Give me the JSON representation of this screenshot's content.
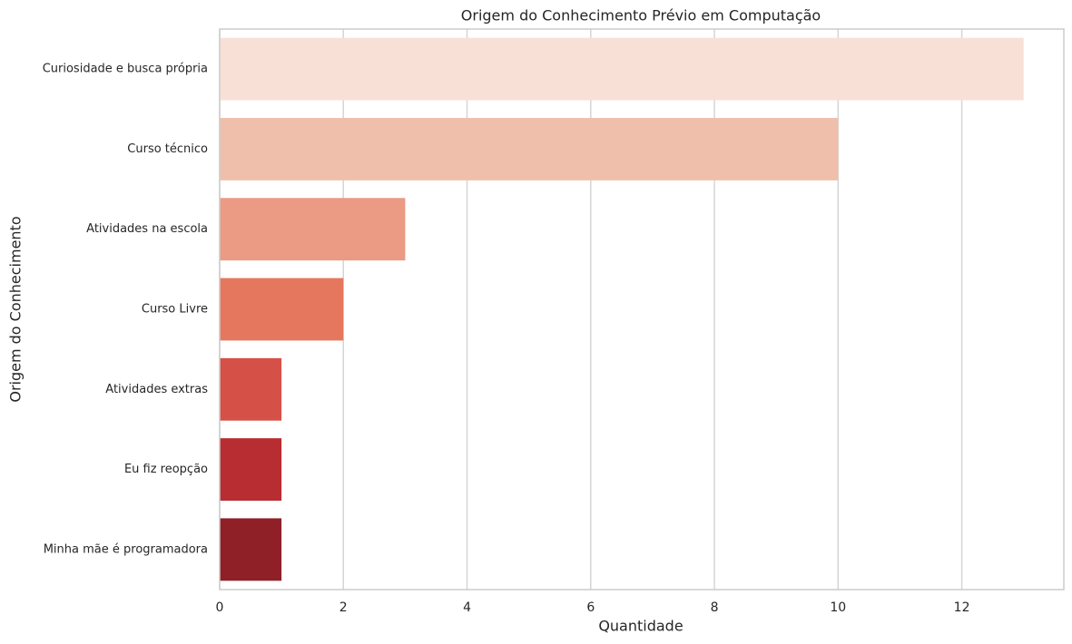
{
  "chart_data": {
    "type": "bar",
    "orientation": "horizontal",
    "title": "Origem do Conhecimento Prévio em Computação",
    "x_label": "Quantidade",
    "y_label": "Origem do Conhecimento",
    "categories": [
      "Curiosidade e busca própria",
      "Curso técnico",
      "Atividades na escola",
      "Curso Livre",
      "Atividades extras",
      "Eu fiz reopção",
      "Minha mãe é programadora"
    ],
    "values": [
      13,
      10,
      3,
      2,
      1,
      1,
      1
    ],
    "colors": [
      "#f9e0d6",
      "#f0bfab",
      "#eb9a83",
      "#e6775f",
      "#d55046",
      "#b72d32",
      "#8f2028"
    ],
    "xlim": [
      0,
      13.65
    ],
    "xticks": [
      0,
      2,
      4,
      6,
      8,
      10,
      12
    ],
    "grid": true
  }
}
